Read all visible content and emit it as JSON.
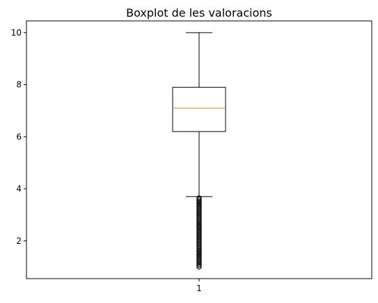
{
  "chart_data": {
    "type": "boxplot",
    "title": "Boxplot de les valoracions",
    "xlabel": "",
    "ylabel": "",
    "categories": [
      "1"
    ],
    "ylim": [
      0.55,
      10.45
    ],
    "yticks": [
      2,
      4,
      6,
      8,
      10
    ],
    "grid": false,
    "box": {
      "whisker_low": 3.7,
      "q1": 6.2,
      "median": 7.1,
      "q3": 7.9,
      "whisker_high": 10.0
    },
    "outliers": [
      1.0,
      1.05,
      1.1,
      1.15,
      1.2,
      1.25,
      1.3,
      1.35,
      1.4,
      1.45,
      1.5,
      1.55,
      1.6,
      1.65,
      1.7,
      1.75,
      1.8,
      1.85,
      1.9,
      1.95,
      2.0,
      2.05,
      2.1,
      2.15,
      2.2,
      2.25,
      2.3,
      2.35,
      2.4,
      2.45,
      2.5,
      2.55,
      2.6,
      2.65,
      2.7,
      2.75,
      2.8,
      2.85,
      2.9,
      2.95,
      3.0,
      3.05,
      3.1,
      3.15,
      3.2,
      3.25,
      3.3,
      3.35,
      3.4,
      3.45,
      3.5,
      3.55,
      3.6,
      3.65
    ],
    "colors": {
      "box": "#000000",
      "median": "#ff7f0e",
      "whisker": "#000000",
      "outlier_edge": "#000000"
    }
  }
}
